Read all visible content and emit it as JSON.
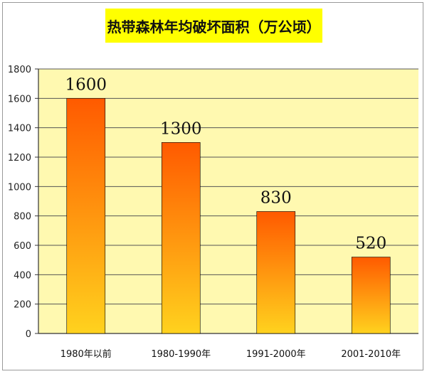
{
  "chart_data": {
    "type": "bar",
    "title": "热带森林年均破坏面积（万公顷）",
    "xlabel": "",
    "ylabel": "",
    "categories": [
      "1980年以前",
      "1980-1990年",
      "1991-2000年",
      "2001-2010年"
    ],
    "values": [
      1600,
      1300,
      830,
      520
    ],
    "data_labels": [
      "1600",
      "1300",
      "830",
      "520"
    ],
    "ylim": [
      0,
      1800
    ],
    "yticks": [
      0,
      200,
      400,
      600,
      800,
      1000,
      1200,
      1400,
      1600,
      1800
    ],
    "grid": true,
    "legend": "none",
    "colors": {
      "plot_background": "#fff9b0",
      "gridline": "#555555",
      "bar_top": "#ff5a00",
      "bar_bottom": "#ffd21e",
      "title_background": "#ffff00"
    }
  }
}
